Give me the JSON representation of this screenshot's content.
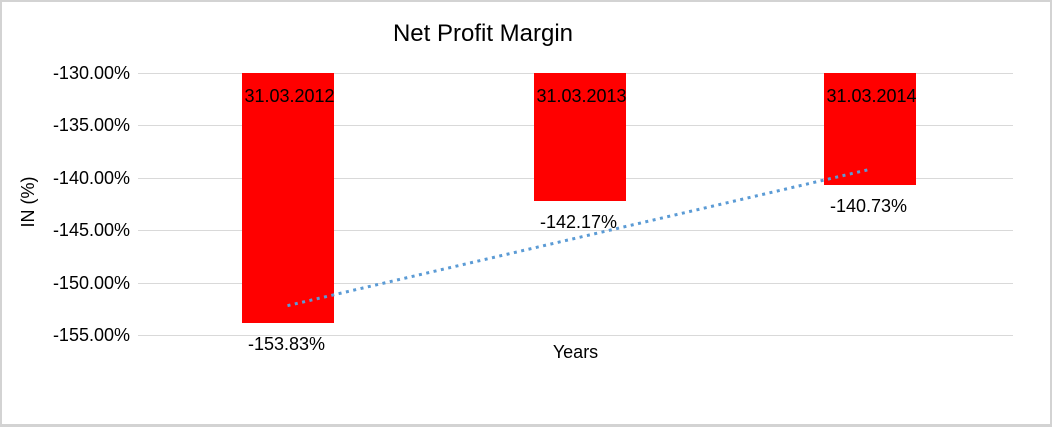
{
  "window": {
    "background_color": "#ffffff",
    "border_color": "#d3d3d3"
  },
  "chart_data": {
    "type": "bar",
    "title": "Net Profit Margin",
    "xlabel": "Years",
    "ylabel": "IN (%)",
    "categories": [
      "31.03.2012",
      "31.03.2013",
      "31.03.2014"
    ],
    "values": [
      -153.83,
      -142.17,
      -140.73
    ],
    "value_labels": [
      "-153.83%",
      "-142.17%",
      "-140.73%"
    ],
    "ytick_labels": [
      "-130.00%",
      "-135.00%",
      "-140.00%",
      "-145.00%",
      "-150.00%",
      "-155.00%"
    ],
    "ytick_values": [
      -130,
      -135,
      -140,
      -145,
      -150,
      -155
    ],
    "ylim": [
      -155,
      -130
    ],
    "bars_start_at": -130,
    "bar_color": "#ff0000",
    "grid": true,
    "gridline_color": "#d9d9d9",
    "legend": false,
    "trendline": {
      "style": "dotted",
      "color": "#5b9bd5",
      "start_value": -152.2,
      "end_value": -139.2
    }
  }
}
